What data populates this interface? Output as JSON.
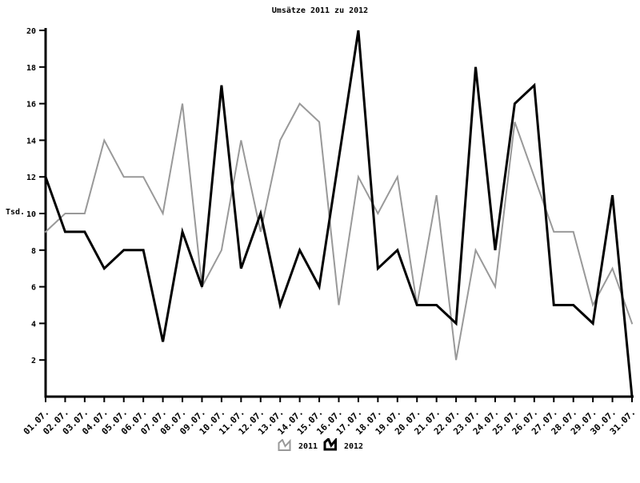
{
  "title": "Umsätze 2011 zu 2012",
  "legend": {
    "item1": "2011",
    "item2": "2012"
  },
  "chart_data": {
    "type": "line",
    "title": "Umsätze 2011 zu 2012",
    "xlabel": "",
    "ylabel": "Tsd.",
    "ylim": [
      0,
      20
    ],
    "y_ticks": [
      2,
      4,
      6,
      8,
      10,
      12,
      14,
      16,
      18,
      20
    ],
    "grid": false,
    "legend_position": "bottom",
    "categories": [
      "01.07.",
      "02.07.",
      "03.07.",
      "04.07.",
      "05.07.",
      "06.07.",
      "07.07.",
      "08.07.",
      "09.07.",
      "10.07.",
      "11.07.",
      "12.07.",
      "13.07.",
      "14.07.",
      "15.07.",
      "16.07.",
      "17.07.",
      "18.07.",
      "19.07.",
      "20.07.",
      "21.07.",
      "22.07.",
      "23.07.",
      "24.07.",
      "25.07.",
      "26.07.",
      "27.07.",
      "28.07.",
      "29.07.",
      "30.07.",
      "31.07."
    ],
    "series": [
      {
        "name": "2011",
        "color": "#999999",
        "line_width": 2,
        "values": [
          9,
          10,
          10,
          14,
          12,
          12,
          10,
          16,
          6,
          8,
          14,
          9,
          14,
          16,
          15,
          5,
          12,
          10,
          12,
          5,
          11,
          2,
          8,
          6,
          15,
          12,
          9,
          9,
          5,
          7,
          4
        ]
      },
      {
        "name": "2012",
        "color": "#000000",
        "line_width": 3,
        "values": [
          12,
          9,
          9,
          7,
          8,
          8,
          3,
          9,
          6,
          17,
          7,
          10,
          5,
          8,
          6,
          13,
          20,
          7,
          8,
          5,
          5,
          4,
          18,
          8,
          16,
          17,
          5,
          5,
          4,
          11,
          0
        ]
      }
    ],
    "axis_color": "#000000"
  }
}
